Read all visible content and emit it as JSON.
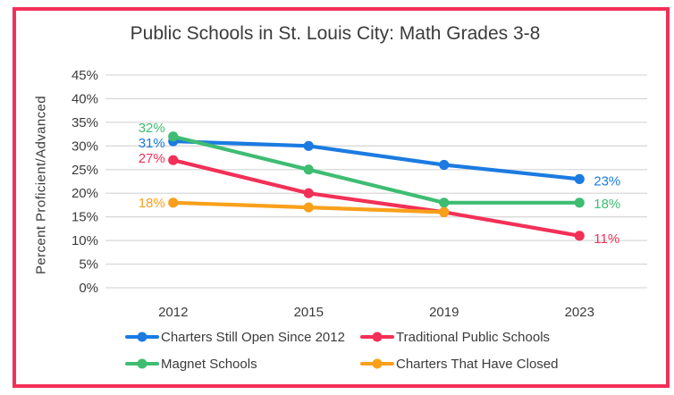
{
  "frame": {
    "border_color": "#F23057"
  },
  "chart_data": {
    "type": "line",
    "title": "Public Schools in St. Louis City: Math Grades 3-8",
    "xlabel": "",
    "ylabel": "Percent Proficient/Advanced",
    "categories": [
      "2012",
      "2015",
      "2019",
      "2023"
    ],
    "ylim": [
      0,
      45
    ],
    "y_tick_step": 5,
    "y_tick_labels": [
      "0%",
      "5%",
      "10%",
      "15%",
      "20%",
      "25%",
      "30%",
      "35%",
      "40%",
      "45%"
    ],
    "grid": true,
    "legend_position": "bottom",
    "colors": {
      "gridline": "#D9D9D9",
      "text": "#3B3B3B"
    },
    "series": [
      {
        "name": "Charters Still Open Since 2012",
        "color": "#1B7BE1",
        "values": [
          31,
          30,
          26,
          23
        ],
        "start_label": {
          "text": "31%",
          "dy": 2
        },
        "end_label": {
          "text": "23%",
          "dy": 2
        }
      },
      {
        "name": "Traditional Public Schools",
        "color": "#F23057",
        "values": [
          27,
          20,
          16,
          11
        ],
        "start_label": {
          "text": "27%",
          "dy": -2
        },
        "end_label": {
          "text": "11%",
          "dy": 3
        }
      },
      {
        "name": "Magnet Schools",
        "color": "#3EBD72",
        "values": [
          32,
          25,
          18,
          18
        ],
        "start_label": {
          "text": "32%",
          "dy": -10
        },
        "end_label": {
          "text": "18%",
          "dy": 1
        }
      },
      {
        "name": "Charters That Have Closed",
        "color": "#F9A01B",
        "values": [
          18,
          17,
          16,
          null
        ],
        "start_label": {
          "text": "18%",
          "dy": 0
        },
        "end_label": null
      }
    ]
  }
}
